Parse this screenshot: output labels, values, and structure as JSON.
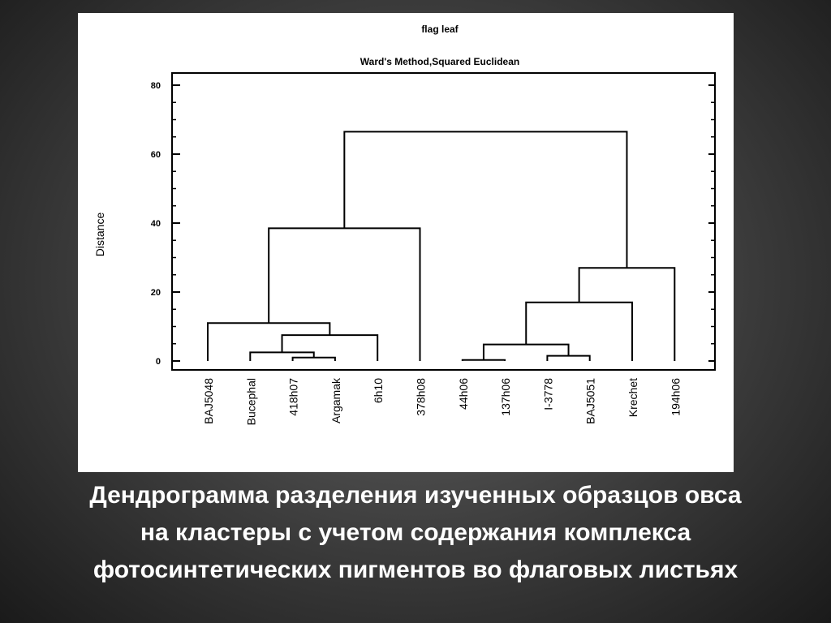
{
  "caption": {
    "line1": "Дендрограмма разделения изученных образцов овса",
    "line2": "на кластеры с учетом содержания комплекса",
    "line3": "фотосинтетических пигментов во флаговых листьях"
  },
  "chart_data": {
    "type": "dendrogram",
    "title": "flag leaf",
    "subtitle": "Ward's Method,Squared Euclidean",
    "ylabel": "Distance",
    "ylim": [
      0,
      80
    ],
    "yticks": [
      0,
      20,
      40,
      60,
      80
    ],
    "grid": false,
    "leaves": [
      "BAJ5048",
      "Bucephal",
      "418h07",
      "Argamak",
      "6h10",
      "378h08",
      "44h06",
      "137h06",
      "I-3778",
      "BAJ5051",
      "Krechet",
      "194h06"
    ],
    "merges": [
      {
        "id": "c1",
        "left": "418h07",
        "right": "Argamak",
        "height": 1.0
      },
      {
        "id": "c2",
        "left": "Bucephal",
        "right": "c1",
        "height": 2.5
      },
      {
        "id": "c3",
        "left": "c2",
        "right": "6h10",
        "height": 7.5
      },
      {
        "id": "c4",
        "left": "BAJ5048",
        "right": "c3",
        "height": 11.0
      },
      {
        "id": "c5",
        "left": "c4",
        "right": "378h08",
        "height": 38.5
      },
      {
        "id": "c6",
        "left": "44h06",
        "right": "137h06",
        "height": 0.3
      },
      {
        "id": "c7",
        "left": "I-3778",
        "right": "BAJ5051",
        "height": 1.5
      },
      {
        "id": "c8",
        "left": "c6",
        "right": "c7",
        "height": 4.8
      },
      {
        "id": "c9",
        "left": "c8",
        "right": "Krechet",
        "height": 17.0
      },
      {
        "id": "c10",
        "left": "c9",
        "right": "194h06",
        "height": 27.0
      },
      {
        "id": "c11",
        "left": "c5",
        "right": "c10",
        "height": 66.5
      }
    ]
  }
}
